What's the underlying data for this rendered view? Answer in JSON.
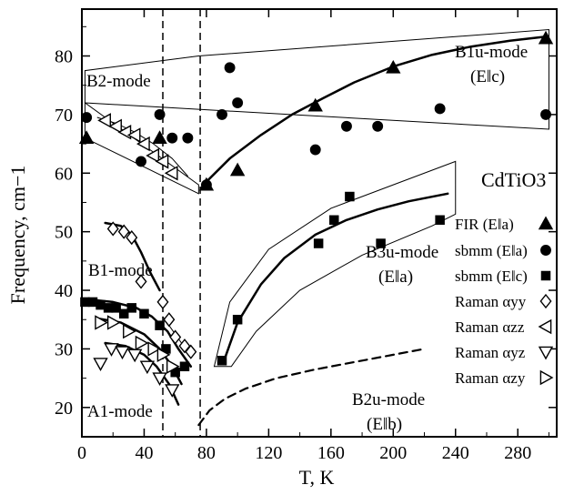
{
  "chart_data": {
    "type": "scatter",
    "title": "CdTiO3",
    "xlabel": "T, K",
    "ylabel": "Frequency, cm−1",
    "xlim": [
      0,
      305
    ],
    "ylim": [
      15,
      88
    ],
    "x_ticks": [
      0,
      40,
      80,
      120,
      160,
      200,
      240,
      280
    ],
    "y_ticks": [
      20,
      30,
      40,
      50,
      60,
      70,
      80
    ],
    "vertical_dashed_lines_x": [
      52,
      76
    ],
    "series": [
      {
        "name": "FIR (E‖a)",
        "marker": "filled-triangle",
        "x": [
          3,
          50,
          80,
          100,
          150,
          200,
          298
        ],
        "y": [
          66,
          66,
          58,
          60.5,
          71.5,
          78,
          83
        ]
      },
      {
        "name": "sbmm (E‖a)",
        "marker": "filled-circle",
        "x": [
          3,
          38,
          50,
          58,
          68,
          80,
          90,
          95,
          100,
          150,
          170,
          190,
          230,
          298
        ],
        "y": [
          69.5,
          62,
          70,
          66,
          66,
          58,
          70,
          78,
          72,
          64,
          68,
          68,
          71,
          70
        ]
      },
      {
        "name": "sbmm (E‖c)",
        "marker": "filled-square",
        "x": [
          2,
          7,
          12,
          17,
          22,
          27,
          32,
          40,
          50,
          54,
          60,
          66,
          90,
          100,
          152,
          162,
          172,
          192,
          230
        ],
        "y": [
          38,
          38,
          37.5,
          37,
          37,
          36,
          37,
          36,
          34,
          30,
          26,
          27,
          28,
          35,
          48,
          52,
          56,
          48,
          52
        ]
      },
      {
        "name": "Raman αyy",
        "marker": "open-diamond",
        "x": [
          20,
          27,
          32,
          38,
          52,
          56,
          60,
          66,
          70
        ],
        "y": [
          50.5,
          50,
          49,
          41.5,
          38,
          35,
          32,
          30.5,
          29.5
        ]
      },
      {
        "name": "Raman αzz",
        "marker": "open-triangle-left",
        "x": [
          15,
          22,
          28,
          34,
          40,
          46,
          52,
          58
        ],
        "y": [
          69,
          68,
          67,
          66.5,
          65,
          63,
          62,
          60
        ]
      },
      {
        "name": "Raman αyz",
        "marker": "open-triangle-down",
        "x": [
          12,
          19,
          26,
          34,
          42,
          50,
          58
        ],
        "y": [
          27.5,
          30,
          29.5,
          29,
          27,
          25,
          23
        ]
      },
      {
        "name": "Raman αzy",
        "marker": "open-triangle-right",
        "x": [
          12,
          20,
          30,
          38,
          46,
          52,
          58
        ],
        "y": [
          34.5,
          34.5,
          33,
          31,
          30,
          29,
          27
        ]
      }
    ],
    "curves": [
      {
        "style": "solid-thick",
        "x": [
          78,
          95,
          115,
          135,
          155,
          175,
          200,
          225,
          250,
          275,
          298
        ],
        "y": [
          58,
          62.5,
          66.5,
          70,
          72.8,
          75.5,
          78.2,
          80.2,
          81.6,
          82.6,
          83.3
        ]
      },
      {
        "style": "solid-thick",
        "x": [
          92,
          100,
          115,
          130,
          150,
          170,
          190,
          210,
          235
        ],
        "y": [
          28.5,
          34.5,
          41,
          45.5,
          49.5,
          52,
          53.8,
          55.2,
          56.5
        ]
      },
      {
        "style": "dashed-thick",
        "x": [
          75,
          82,
          92,
          105,
          125,
          150,
          180,
          220
        ],
        "y": [
          17,
          19.5,
          21.5,
          23.2,
          25,
          26.5,
          28,
          30
        ]
      },
      {
        "style": "solid-thick",
        "x": [
          15,
          25,
          32,
          38,
          44,
          50
        ],
        "y": [
          51.5,
          51,
          49.5,
          46.5,
          43,
          40
        ]
      },
      {
        "style": "solid-thick",
        "x": [
          2,
          20,
          35,
          45,
          55,
          62,
          70
        ],
        "y": [
          38.5,
          38,
          37,
          35.5,
          33,
          30,
          27
        ]
      },
      {
        "style": "solid-thick",
        "x": [
          10,
          25,
          40,
          50,
          58,
          64
        ],
        "y": [
          35.2,
          34.5,
          32.5,
          30,
          27,
          24
        ]
      },
      {
        "style": "solid-thick",
        "x": [
          15,
          28,
          40,
          48,
          56,
          62
        ],
        "y": [
          31,
          30.5,
          29,
          27,
          24,
          20.5
        ]
      },
      {
        "style": "solid-thin",
        "x": [
          52,
          56,
          60,
          64,
          68,
          72
        ],
        "y": [
          35.5,
          34,
          32.5,
          31,
          30,
          29.5
        ]
      },
      {
        "style": "solid-thin",
        "x": [
          10,
          22,
          34,
          46,
          58,
          68
        ],
        "y": [
          69.5,
          68.5,
          67,
          65,
          62.5,
          59.5
        ]
      }
    ],
    "regions": [
      {
        "label": "B1u-mode",
        "x": [
          2,
          2,
          300,
          300,
          75
        ],
        "y": [
          77.5,
          72,
          67.5,
          84.5,
          80
        ]
      },
      {
        "label": "B2-mode",
        "x": [
          2,
          75,
          75,
          2
        ],
        "y": [
          66,
          56.5,
          58,
          72
        ]
      },
      {
        "label": "B3u-mode",
        "x": [
          85,
          95,
          120,
          160,
          200,
          240,
          240,
          225,
          180,
          140,
          112,
          96
        ],
        "y": [
          27,
          38,
          47,
          54,
          58,
          62,
          53,
          51,
          46,
          40,
          33,
          27
        ]
      }
    ],
    "annotations": [
      {
        "text": "B2-mode"
      },
      {
        "text": "B1u-mode"
      },
      {
        "text": "(E‖c)"
      },
      {
        "text": "B1-mode"
      },
      {
        "text": "B3u-mode"
      },
      {
        "text": "(E‖a)"
      },
      {
        "text": "A1-mode"
      },
      {
        "text": "B2u-mode"
      },
      {
        "text": "(E‖b)"
      }
    ]
  }
}
